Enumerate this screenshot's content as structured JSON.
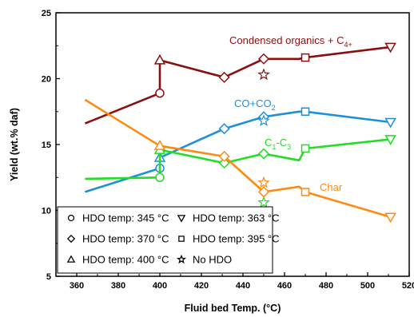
{
  "chart_data": {
    "type": "line",
    "xlabel": "Fluid bed Temp. (°C)",
    "ylabel": "Yield (wt.% daf)",
    "xlim": [
      350,
      520
    ],
    "ylim": [
      5,
      25
    ],
    "xticks": [
      360,
      380,
      400,
      420,
      440,
      460,
      480,
      500,
      520
    ],
    "yticks": [
      5,
      10,
      15,
      20,
      25
    ],
    "series": [
      {
        "label_parts": [
          {
            "t": "Condensed organics + C"
          },
          {
            "t": "4+",
            "sub": true
          }
        ],
        "color": "#8b0f0f",
        "points": [
          {
            "x": 364,
            "y": 16.6,
            "m": "none"
          },
          {
            "x": 400,
            "y": 18.9,
            "m": "circle"
          },
          {
            "x": 400,
            "y": 21.4,
            "m": "triangle-up"
          },
          {
            "x": 431,
            "y": 20.1,
            "m": "diamond"
          },
          {
            "x": 450,
            "y": 21.5,
            "m": "diamond"
          },
          {
            "x": 467,
            "y": 21.5,
            "m": "none"
          },
          {
            "x": 470,
            "y": 21.6,
            "m": "square"
          },
          {
            "x": 511,
            "y": 22.4,
            "m": "triangle-down"
          }
        ],
        "extra": [
          {
            "x": 450,
            "y": 20.3,
            "m": "star"
          }
        ]
      },
      {
        "label_parts": [
          {
            "t": "CO+CO"
          },
          {
            "t": "2",
            "sub": true
          }
        ],
        "color": "#1f8fd8",
        "points": [
          {
            "x": 364,
            "y": 11.4,
            "m": "none"
          },
          {
            "x": 400,
            "y": 13.2,
            "m": "circle"
          },
          {
            "x": 400,
            "y": 14.0,
            "m": "triangle-up"
          },
          {
            "x": 431,
            "y": 16.2,
            "m": "diamond"
          },
          {
            "x": 450,
            "y": 17.1,
            "m": "diamond"
          },
          {
            "x": 467,
            "y": 17.5,
            "m": "none"
          },
          {
            "x": 470,
            "y": 17.5,
            "m": "square"
          },
          {
            "x": 511,
            "y": 16.7,
            "m": "triangle-down"
          }
        ],
        "extra": [
          {
            "x": 450,
            "y": 16.8,
            "m": "star"
          }
        ]
      },
      {
        "label_parts": [
          {
            "t": "C"
          },
          {
            "t": "1",
            "sub": true
          },
          {
            "t": "-C"
          },
          {
            "t": "3",
            "sub": true
          }
        ],
        "color": "#22dd22",
        "points": [
          {
            "x": 364,
            "y": 12.4,
            "m": "none"
          },
          {
            "x": 400,
            "y": 12.5,
            "m": "circle"
          },
          {
            "x": 400,
            "y": 14.6,
            "m": "triangle-up"
          },
          {
            "x": 431,
            "y": 13.6,
            "m": "diamond"
          },
          {
            "x": 450,
            "y": 14.3,
            "m": "diamond"
          },
          {
            "x": 467,
            "y": 13.8,
            "m": "none"
          },
          {
            "x": 470,
            "y": 14.7,
            "m": "square"
          },
          {
            "x": 511,
            "y": 15.4,
            "m": "triangle-down"
          }
        ],
        "extra": [
          {
            "x": 450,
            "y": 10.6,
            "m": "star"
          }
        ]
      },
      {
        "label_parts": [
          {
            "t": "Char"
          }
        ],
        "color": "#ff8a10",
        "points": [
          {
            "x": 364,
            "y": 18.4,
            "m": "none"
          },
          {
            "x": 400,
            "y": 14.9,
            "m": "triangle-up"
          },
          {
            "x": 431,
            "y": 14.1,
            "m": "diamond"
          },
          {
            "x": 450,
            "y": 11.4,
            "m": "diamond"
          },
          {
            "x": 467,
            "y": 11.8,
            "m": "none"
          },
          {
            "x": 470,
            "y": 11.4,
            "m": "square"
          },
          {
            "x": 511,
            "y": 9.5,
            "m": "triangle-down"
          }
        ],
        "extra": [
          {
            "x": 450,
            "y": 12.1,
            "m": "star"
          }
        ]
      }
    ],
    "legend": {
      "placement": "bottom-left",
      "entries": [
        {
          "marker": "circle",
          "label": "HDO temp: 345 °C"
        },
        {
          "marker": "triangle-down",
          "label": "HDO temp: 363 °C"
        },
        {
          "marker": "diamond",
          "label": "HDO temp: 370 °C"
        },
        {
          "marker": "square",
          "label": "HDO temp: 395 °C"
        },
        {
          "marker": "triangle-up",
          "label": "HDO temp: 400 °C"
        },
        {
          "marker": "star",
          "label": "No HDO"
        }
      ]
    }
  }
}
